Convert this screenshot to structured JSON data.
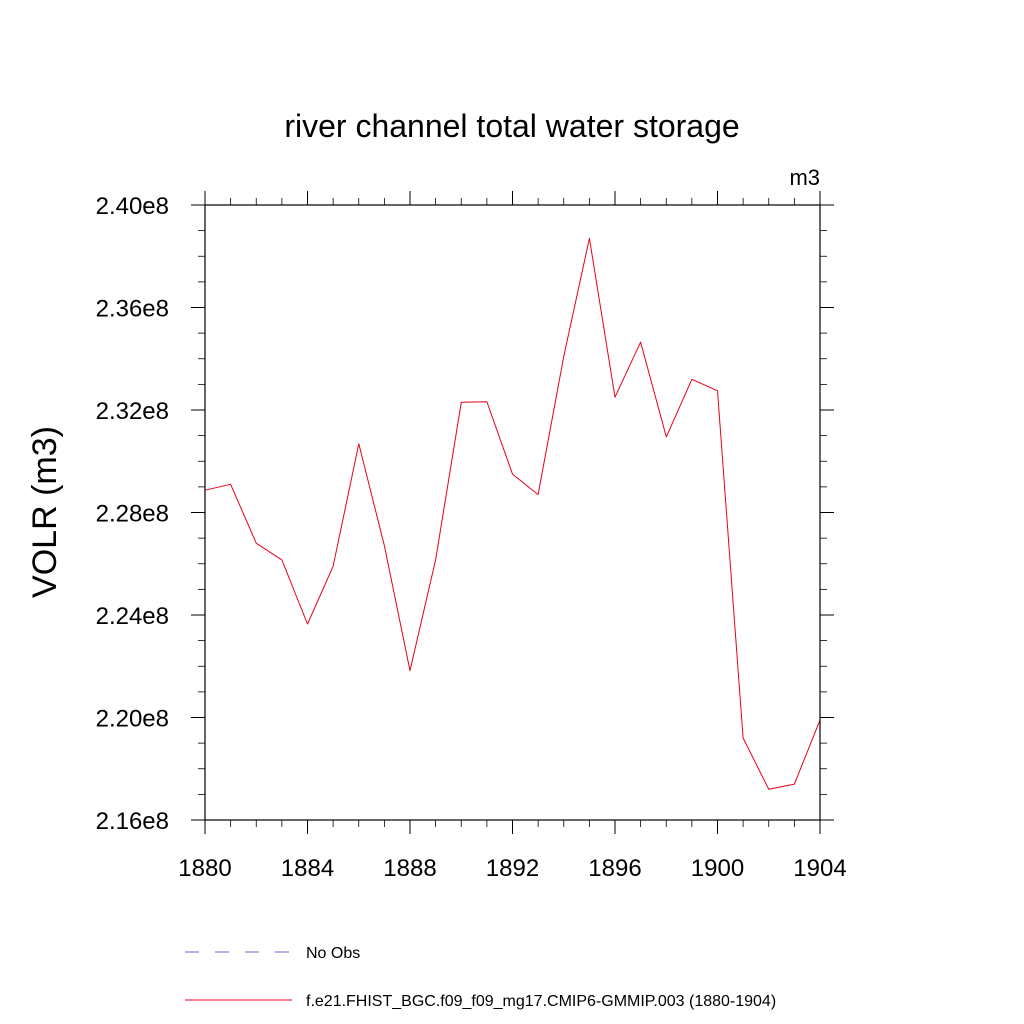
{
  "chart_data": {
    "type": "line",
    "title": "river channel total water storage",
    "units_label": "m3",
    "ylabel": "VOLR  (m3)",
    "xlabel": "",
    "xlim": [
      1880,
      1904
    ],
    "ylim": [
      216000000.0,
      240000000.0
    ],
    "x_ticks": [
      "1880",
      "1884",
      "1888",
      "1892",
      "1896",
      "1900",
      "1904"
    ],
    "y_ticks": [
      "2.16e8",
      "2.20e8",
      "2.24e8",
      "2.28e8",
      "2.32e8",
      "2.36e8",
      "2.40e8"
    ],
    "series": [
      {
        "name": "f.e21.FHIST_BGC.f09_f09_mg17.CMIP6-GMMIP.003 (1880-1904)",
        "color": "#e8001c",
        "style": "solid",
        "x": [
          1880,
          1881,
          1882,
          1883,
          1884,
          1885,
          1886,
          1887,
          1888,
          1889,
          1890,
          1891,
          1892,
          1893,
          1894,
          1895,
          1896,
          1897,
          1898,
          1899,
          1900,
          1901,
          1902,
          1903,
          1904
        ],
        "values": [
          228870000.0,
          229100000.0,
          226800000.0,
          226150000.0,
          223650000.0,
          225900000.0,
          230680000.0,
          226700000.0,
          221830000.0,
          226150000.0,
          232300000.0,
          232320000.0,
          229500000.0,
          228700000.0,
          234100000.0,
          238700000.0,
          232500000.0,
          234650000.0,
          230950000.0,
          233200000.0,
          232750000.0,
          219200000.0,
          217200000.0,
          217400000.0,
          219900000.0
        ]
      }
    ],
    "legend": [
      {
        "label": "No Obs",
        "color": "#6666cc",
        "style": "dashed"
      },
      {
        "label": "f.e21.FHIST_BGC.f09_f09_mg17.CMIP6-GMMIP.003 (1880-1904)",
        "color": "#e8001c",
        "style": "solid"
      }
    ],
    "legend_position": "bottom",
    "grid": false
  }
}
